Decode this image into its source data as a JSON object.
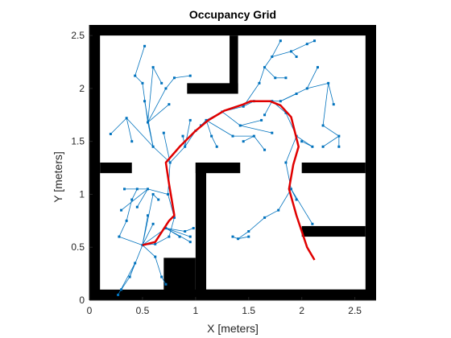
{
  "colors": {
    "obstacle": "#000000",
    "free": "#ffffff",
    "tree": "#0072bd",
    "path": "#e00000",
    "axis": "#262626"
  },
  "chart_data": {
    "type": "occupancy-grid",
    "title": "Occupancy Grid",
    "xlabel": "X [meters]",
    "ylabel": "Y [meters]",
    "xlim": [
      0,
      2.7
    ],
    "ylim": [
      0,
      2.6
    ],
    "xticks": [
      0,
      0.5,
      1,
      1.5,
      2,
      2.5
    ],
    "yticks": [
      0,
      0.5,
      1,
      1.5,
      2,
      2.5
    ],
    "xtick_labels": [
      "0",
      "0.5",
      "1",
      "1.5",
      "2",
      "2.5"
    ],
    "ytick_labels": [
      "0",
      "0.5",
      "1",
      "1.5",
      "2",
      "2.5"
    ],
    "obstacles": [
      {
        "x": [
          0.0,
          0.1
        ],
        "y": [
          0.0,
          2.6
        ]
      },
      {
        "x": [
          2.6,
          2.7
        ],
        "y": [
          0.0,
          2.6
        ]
      },
      {
        "x": [
          0.0,
          2.7
        ],
        "y": [
          2.5,
          2.6
        ]
      },
      {
        "x": [
          0.0,
          2.7
        ],
        "y": [
          0.0,
          0.1
        ]
      },
      {
        "x": [
          1.32,
          1.4
        ],
        "y": [
          1.95,
          2.5
        ]
      },
      {
        "x": [
          0.92,
          1.4
        ],
        "y": [
          1.95,
          2.05
        ]
      },
      {
        "x": [
          0.1,
          0.4
        ],
        "y": [
          1.2,
          1.3
        ]
      },
      {
        "x": [
          1.0,
          1.42
        ],
        "y": [
          1.2,
          1.3
        ]
      },
      {
        "x": [
          1.0,
          1.1
        ],
        "y": [
          0.0,
          1.3
        ]
      },
      {
        "x": [
          0.7,
          1.0
        ],
        "y": [
          0.0,
          0.4
        ]
      },
      {
        "x": [
          1.0,
          2.6
        ],
        "y": [
          0.0,
          0.1
        ]
      },
      {
        "x": [
          1.1,
          2.6
        ],
        "y": [
          0.0,
          0.1
        ]
      },
      {
        "x": [
          2.0,
          2.6
        ],
        "y": [
          1.2,
          1.3
        ]
      },
      {
        "x": [
          2.0,
          2.6
        ],
        "y": [
          0.6,
          0.7
        ]
      }
    ],
    "tree_nodes": [
      [
        0.5,
        0.52
      ],
      [
        0.62,
        0.53
      ],
      [
        0.75,
        0.6
      ],
      [
        0.8,
        0.78
      ],
      [
        0.74,
        1.0
      ],
      [
        0.76,
        1.3
      ],
      [
        0.9,
        1.45
      ],
      [
        1.0,
        1.6
      ],
      [
        1.1,
        1.7
      ],
      [
        1.25,
        1.78
      ],
      [
        1.45,
        1.83
      ],
      [
        1.55,
        1.88
      ],
      [
        1.72,
        1.88
      ],
      [
        1.85,
        1.77
      ],
      [
        1.95,
        1.55
      ],
      [
        1.85,
        1.3
      ],
      [
        1.9,
        1.05
      ],
      [
        2.1,
        0.72
      ],
      [
        0.27,
        0.05
      ],
      [
        0.38,
        0.22
      ],
      [
        0.43,
        0.35
      ],
      [
        0.3,
        0.1
      ],
      [
        0.28,
        0.6
      ],
      [
        0.35,
        0.75
      ],
      [
        0.4,
        0.95
      ],
      [
        0.45,
        1.05
      ],
      [
        0.6,
        1.0
      ],
      [
        0.65,
        0.95
      ],
      [
        0.55,
        0.8
      ],
      [
        0.6,
        0.72
      ],
      [
        0.72,
        0.68
      ],
      [
        0.85,
        0.6
      ],
      [
        0.95,
        0.55
      ],
      [
        0.9,
        0.65
      ],
      [
        0.95,
        0.6
      ],
      [
        0.98,
        0.68
      ],
      [
        0.62,
        0.41
      ],
      [
        0.68,
        0.22
      ],
      [
        0.72,
        0.15
      ],
      [
        0.55,
        1.05
      ],
      [
        0.33,
        1.05
      ],
      [
        0.3,
        0.85
      ],
      [
        0.45,
        0.88
      ],
      [
        0.2,
        1.57
      ],
      [
        0.4,
        1.5
      ],
      [
        0.35,
        1.72
      ],
      [
        0.52,
        1.88
      ],
      [
        0.55,
        1.68
      ],
      [
        0.6,
        1.45
      ],
      [
        0.7,
        1.58
      ],
      [
        0.72,
        2.0
      ],
      [
        0.8,
        2.1
      ],
      [
        0.75,
        1.85
      ],
      [
        0.5,
        2.05
      ],
      [
        0.43,
        2.12
      ],
      [
        0.52,
        2.4
      ],
      [
        0.6,
        2.2
      ],
      [
        0.68,
        2.05
      ],
      [
        0.95,
        2.12
      ],
      [
        0.88,
        1.55
      ],
      [
        0.95,
        1.7
      ],
      [
        1.05,
        1.65
      ],
      [
        1.15,
        1.55
      ],
      [
        1.2,
        1.45
      ],
      [
        1.35,
        1.55
      ],
      [
        1.42,
        1.65
      ],
      [
        1.55,
        1.55
      ],
      [
        1.45,
        1.5
      ],
      [
        1.65,
        1.42
      ],
      [
        1.72,
        1.58
      ],
      [
        1.62,
        1.7
      ],
      [
        1.65,
        1.75
      ],
      [
        1.8,
        1.88
      ],
      [
        1.95,
        1.95
      ],
      [
        2.05,
        2.0
      ],
      [
        2.15,
        2.2
      ],
      [
        2.25,
        2.05
      ],
      [
        2.3,
        1.85
      ],
      [
        2.2,
        1.65
      ],
      [
        2.35,
        1.55
      ],
      [
        2.2,
        1.45
      ],
      [
        2.35,
        1.45
      ],
      [
        2.1,
        1.45
      ],
      [
        2.0,
        1.5
      ],
      [
        1.6,
        2.05
      ],
      [
        1.65,
        2.2
      ],
      [
        1.72,
        2.3
      ],
      [
        1.8,
        2.45
      ],
      [
        1.9,
        2.35
      ],
      [
        1.95,
        2.3
      ],
      [
        2.05,
        2.42
      ],
      [
        2.12,
        2.45
      ],
      [
        1.75,
        2.1
      ],
      [
        1.85,
        2.1
      ],
      [
        1.78,
        0.85
      ],
      [
        1.65,
        0.78
      ],
      [
        1.5,
        0.65
      ],
      [
        1.4,
        0.58
      ],
      [
        1.35,
        0.6
      ],
      [
        1.5,
        0.6
      ],
      [
        1.95,
        0.95
      ]
    ],
    "tree_edges": [
      [
        0,
        1
      ],
      [
        1,
        2
      ],
      [
        2,
        3
      ],
      [
        3,
        4
      ],
      [
        4,
        5
      ],
      [
        5,
        6
      ],
      [
        6,
        7
      ],
      [
        7,
        8
      ],
      [
        8,
        9
      ],
      [
        9,
        10
      ],
      [
        10,
        11
      ],
      [
        11,
        12
      ],
      [
        12,
        13
      ],
      [
        13,
        14
      ],
      [
        14,
        15
      ],
      [
        15,
        16
      ],
      [
        16,
        17
      ],
      [
        19,
        0
      ],
      [
        20,
        19
      ],
      [
        18,
        20
      ],
      [
        21,
        19
      ],
      [
        22,
        0
      ],
      [
        23,
        22
      ],
      [
        24,
        23
      ],
      [
        25,
        24
      ],
      [
        26,
        0
      ],
      [
        27,
        26
      ],
      [
        28,
        0
      ],
      [
        29,
        0
      ],
      [
        30,
        0
      ],
      [
        31,
        30
      ],
      [
        32,
        30
      ],
      [
        33,
        30
      ],
      [
        34,
        30
      ],
      [
        35,
        33
      ],
      [
        36,
        0
      ],
      [
        37,
        36
      ],
      [
        38,
        37
      ],
      [
        39,
        4
      ],
      [
        40,
        39
      ],
      [
        41,
        39
      ],
      [
        42,
        39
      ],
      [
        43,
        45
      ],
      [
        44,
        45
      ],
      [
        45,
        48
      ],
      [
        46,
        48
      ],
      [
        47,
        48
      ],
      [
        48,
        5
      ],
      [
        49,
        5
      ],
      [
        50,
        47
      ],
      [
        51,
        50
      ],
      [
        52,
        47
      ],
      [
        53,
        47
      ],
      [
        54,
        53
      ],
      [
        55,
        54
      ],
      [
        56,
        47
      ],
      [
        57,
        56
      ],
      [
        58,
        51
      ],
      [
        59,
        6
      ],
      [
        60,
        6
      ],
      [
        61,
        8
      ],
      [
        62,
        8
      ],
      [
        63,
        62
      ],
      [
        64,
        8
      ],
      [
        65,
        9
      ],
      [
        66,
        64
      ],
      [
        67,
        66
      ],
      [
        68,
        66
      ],
      [
        69,
        65
      ],
      [
        70,
        65
      ],
      [
        71,
        12
      ],
      [
        72,
        12
      ],
      [
        73,
        72
      ],
      [
        74,
        72
      ],
      [
        75,
        74
      ],
      [
        76,
        74
      ],
      [
        77,
        76
      ],
      [
        78,
        76
      ],
      [
        79,
        78
      ],
      [
        80,
        79
      ],
      [
        81,
        79
      ],
      [
        82,
        14
      ],
      [
        83,
        82
      ],
      [
        84,
        10
      ],
      [
        85,
        84
      ],
      [
        86,
        85
      ],
      [
        87,
        86
      ],
      [
        88,
        86
      ],
      [
        89,
        88
      ],
      [
        90,
        88
      ],
      [
        91,
        90
      ],
      [
        92,
        85
      ],
      [
        93,
        92
      ],
      [
        94,
        16
      ],
      [
        95,
        94
      ],
      [
        96,
        95
      ],
      [
        97,
        96
      ],
      [
        98,
        97
      ],
      [
        99,
        97
      ],
      [
        100,
        16
      ]
    ],
    "path": [
      [
        0.5,
        0.52
      ],
      [
        0.62,
        0.55
      ],
      [
        0.75,
        0.75
      ],
      [
        0.8,
        0.8
      ],
      [
        0.75,
        1.1
      ],
      [
        0.72,
        1.3
      ],
      [
        0.85,
        1.45
      ],
      [
        1.0,
        1.6
      ],
      [
        1.12,
        1.7
      ],
      [
        1.27,
        1.79
      ],
      [
        1.45,
        1.85
      ],
      [
        1.52,
        1.88
      ],
      [
        1.7,
        1.88
      ],
      [
        1.8,
        1.84
      ],
      [
        1.9,
        1.73
      ],
      [
        1.97,
        1.45
      ],
      [
        1.92,
        1.28
      ],
      [
        1.88,
        1.05
      ],
      [
        1.95,
        0.8
      ],
      [
        2.05,
        0.5
      ],
      [
        2.12,
        0.38
      ]
    ]
  }
}
